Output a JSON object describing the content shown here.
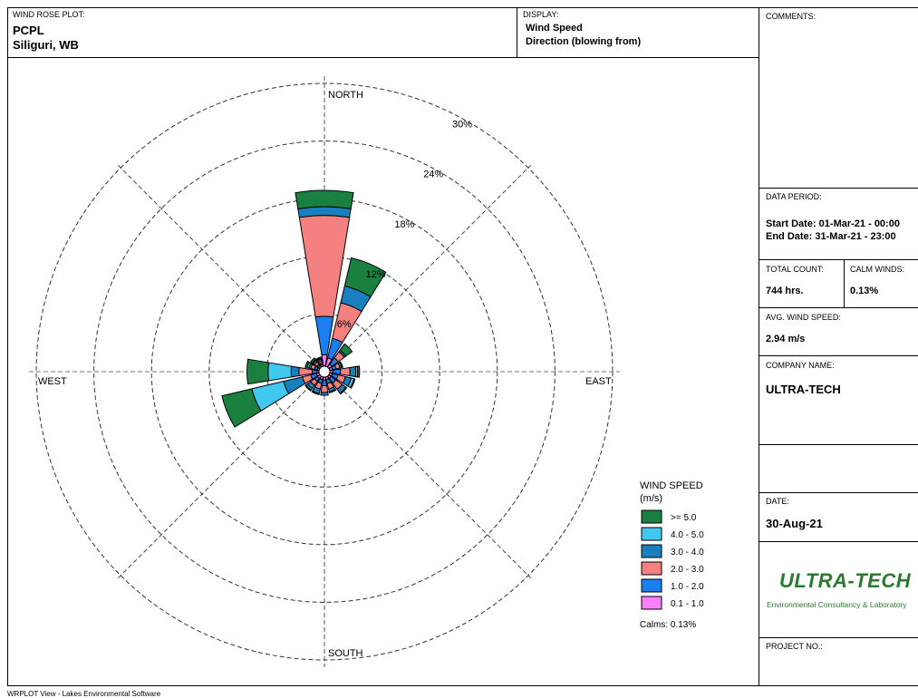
{
  "header": {
    "plot_caption": "WIND ROSE PLOT:",
    "plot_title": "PCPL",
    "plot_subtitle": "Siliguri, WB",
    "display_caption": "DISPLAY:",
    "display_line1": "Wind Speed",
    "display_line2": "Direction (blowing from)"
  },
  "sidebar": {
    "comments_caption": "COMMENTS:",
    "data_period_caption": "DATA PERIOD:",
    "start_date": "Start Date: 01-Mar-21 - 00:00",
    "end_date": "End Date: 31-Mar-21 - 23:00",
    "total_count_caption": "TOTAL COUNT:",
    "total_count": "744 hrs.",
    "calm_winds_caption": "CALM WINDS:",
    "calm_winds": "0.13%",
    "avg_speed_caption": "AVG. WIND SPEED:",
    "avg_speed": "2.94 m/s",
    "company_caption": "COMPANY NAME:",
    "company_name": "ULTRA-TECH",
    "date_caption": "DATE:",
    "date": "30-Aug-21",
    "logo_name": "ULTRA-TECH",
    "logo_tagline": "Environmental Consultancy & Laboratory",
    "project_caption": "PROJECT NO.:"
  },
  "footer": "WRPLOT View - Lakes Environmental Software",
  "chart_data": {
    "type": "windrose",
    "compass_labels": {
      "north": "NORTH",
      "east": "EAST",
      "south": "SOUTH",
      "west": "WEST"
    },
    "ring_values": [
      6,
      12,
      18,
      24,
      30
    ],
    "ring_labels": [
      "6%",
      "12%",
      "18%",
      "24%",
      "30%"
    ],
    "direction_bins": [
      "N",
      "NNE",
      "NE",
      "ENE",
      "E",
      "ESE",
      "SE",
      "SSE",
      "S",
      "SSW",
      "SW",
      "WSW",
      "W",
      "WNW",
      "NW",
      "NNW"
    ],
    "legend_title": "WIND SPEED",
    "legend_unit": "(m/s)",
    "speed_classes": [
      {
        "label": "0.1 -  1.0",
        "color": "#ff80ff"
      },
      {
        "label": "1.0 -  2.0",
        "color": "#1a7ff0"
      },
      {
        "label": "2.0 -  3.0",
        "color": "#f58080"
      },
      {
        "label": "3.0 -  4.0",
        "color": "#1a7fbf"
      },
      {
        "label": "4.0 -  5.0",
        "color": "#40c8f0"
      },
      {
        "label": ">=  5.0",
        "color": "#1a8040"
      }
    ],
    "frequencies_percent": [
      [
        1.2,
        4.0,
        10.5,
        0.9,
        0.0,
        1.7
      ],
      [
        0.9,
        2.1,
        3.8,
        1.8,
        0.0,
        3.0
      ],
      [
        0.4,
        0.8,
        0.8,
        0.2,
        0.0,
        0.8
      ],
      [
        0.3,
        0.4,
        0.4,
        0.2,
        0.0,
        0.1
      ],
      [
        0.3,
        0.8,
        1.0,
        0.6,
        0.2,
        0.2
      ],
      [
        0.3,
        0.6,
        0.8,
        0.6,
        0.3,
        0.1
      ],
      [
        0.3,
        0.6,
        0.8,
        0.5,
        0.1,
        0.0
      ],
      [
        0.3,
        0.4,
        0.6,
        0.3,
        0.1,
        0.0
      ],
      [
        0.3,
        0.6,
        0.7,
        0.3,
        0.0,
        0.0
      ],
      [
        0.3,
        0.4,
        0.6,
        0.5,
        0.1,
        0.0
      ],
      [
        0.3,
        0.4,
        0.5,
        0.4,
        0.2,
        0.1
      ],
      [
        0.3,
        0.6,
        0.9,
        2.0,
        3.4,
        3.2
      ],
      [
        0.2,
        0.5,
        1.4,
        0.8,
        2.4,
        2.2
      ],
      [
        0.2,
        0.3,
        0.4,
        0.2,
        0.2,
        0.2
      ],
      [
        0.2,
        0.2,
        0.3,
        0.2,
        0.1,
        0.2
      ],
      [
        0.2,
        0.2,
        0.2,
        0.2,
        0.1,
        0.1
      ]
    ],
    "calms_label": "Calms: 0.13%",
    "calms_percent": 0.13
  }
}
